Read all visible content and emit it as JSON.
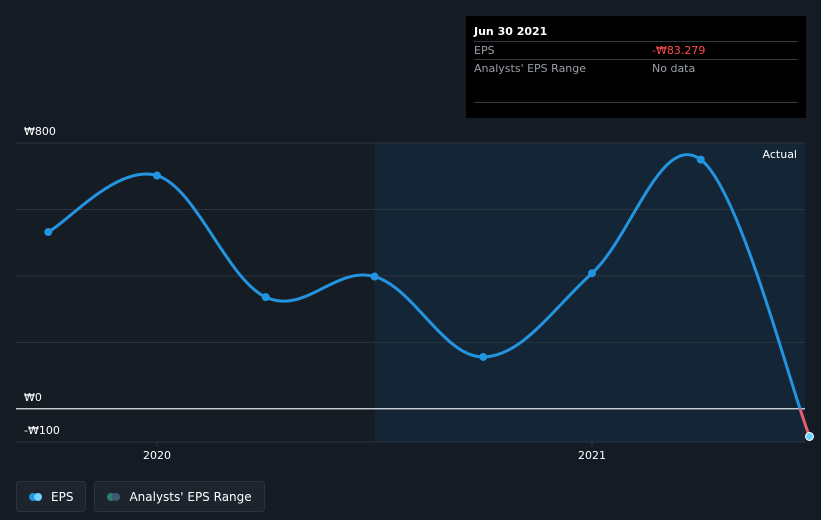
{
  "chart_data": {
    "type": "line",
    "title": "",
    "xlabel": "",
    "ylabel": "",
    "ylim": [
      -100,
      800
    ],
    "y_tick_labels": [
      {
        "value": 800,
        "label": "₩800"
      },
      {
        "value": 0,
        "label": "₩0"
      },
      {
        "value": -100,
        "label": "-₩100"
      }
    ],
    "x_tick_labels": [
      {
        "value": 2020.0,
        "label": "2020"
      },
      {
        "value": 2021.0,
        "label": "2021"
      }
    ],
    "region_label": "Actual",
    "series": [
      {
        "name": "EPS",
        "x": [
          2019.75,
          2020.0,
          2020.25,
          2020.5,
          2020.75,
          2021.0,
          2021.25,
          2021.5
        ],
        "values": [
          532,
          702,
          336,
          398,
          156,
          408,
          750,
          -83.279
        ]
      }
    ]
  },
  "tooltip": {
    "date": "Jun 30 2021",
    "rows": [
      {
        "label": "EPS",
        "value": "-₩83.279"
      },
      {
        "label": "Analysts' EPS Range",
        "value": "No data"
      }
    ]
  },
  "legend": [
    {
      "label": "EPS"
    },
    {
      "label": "Analysts' EPS Range"
    }
  ],
  "colors": {
    "background": "#151b24",
    "past_region": "#161c24",
    "actual_region": "#142536",
    "eps_line": "#2394df",
    "negative_line": "#e15f6f",
    "gridline": "#2b3440",
    "zero_line": "#dfe4ea",
    "axis_text": "#ffffff",
    "range_dot_a": "#2e7d6e",
    "range_dot_b": "#3d5a73",
    "eps_dot_a": "#2394df",
    "eps_dot_b": "#6fd3ff"
  }
}
